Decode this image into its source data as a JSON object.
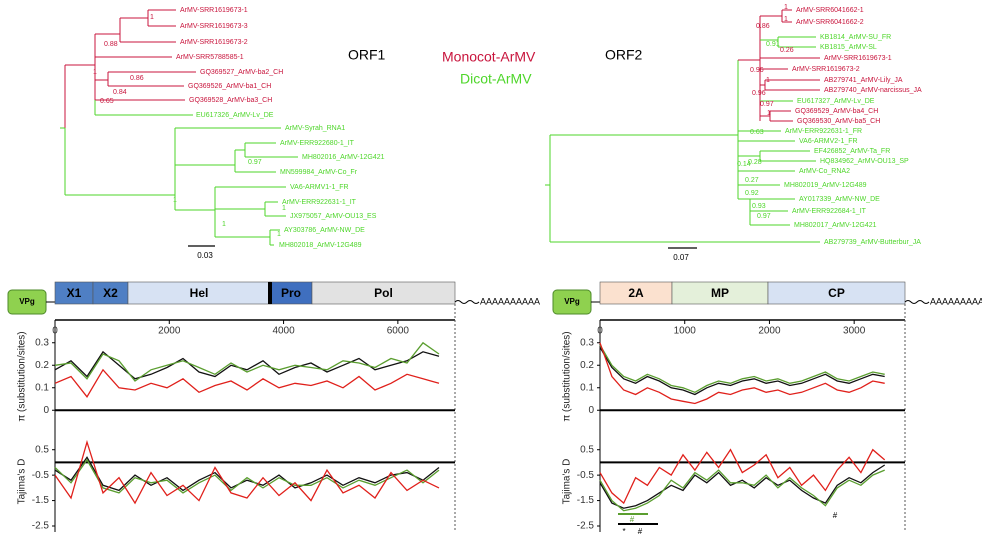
{
  "trees": [
    {
      "title": "ORF1",
      "scale": "0.03",
      "leaves": [
        {
          "label": "ArMV-SRR1619673-1",
          "color": "#c8143c"
        },
        {
          "label": "ArMV-SRR1619673-3",
          "color": "#c8143c"
        },
        {
          "label": "ArMV-SRR1619673-2",
          "color": "#c8143c"
        },
        {
          "label": "ArMV-SRR5788585-1",
          "color": "#c8143c"
        },
        {
          "label": "GQ369527_ArMV-ba2_CH",
          "color": "#c8143c"
        },
        {
          "label": "GQ369526_ArMV-ba1_CH",
          "color": "#c8143c"
        },
        {
          "label": "GQ369528_ArMV-ba3_CH",
          "color": "#c8143c"
        },
        {
          "label": "EU617326_ArMV-Lv_DE",
          "color": "#4ed62a"
        },
        {
          "label": "ArMV-Syrah_RNA1",
          "color": "#4ed62a"
        },
        {
          "label": "ArMV-ERR922680-1_IT",
          "color": "#4ed62a"
        },
        {
          "label": "MH802016_ArMV-12G421",
          "color": "#4ed62a"
        },
        {
          "label": "MN599984_ArMV-Co_Fr",
          "color": "#4ed62a"
        },
        {
          "label": "VA6-ARMV1-1_FR",
          "color": "#4ed62a"
        },
        {
          "label": "ArMV-ERR922631-1_IT",
          "color": "#4ed62a"
        },
        {
          "label": "JX975057_ArMV-OU13_ES",
          "color": "#4ed62a"
        },
        {
          "label": "AY303786_ArMV-NW_DE",
          "color": "#4ed62a"
        },
        {
          "label": "MH802018_ArMV-12G489",
          "color": "#4ed62a"
        }
      ],
      "support": [
        "1",
        "0.88",
        "1",
        "0.86",
        "0.84",
        "0.65",
        "0.97",
        "1",
        "1",
        "1",
        "1"
      ]
    },
    {
      "title": "ORF2",
      "scale": "0.07",
      "leaves": [
        {
          "label": "ArMV-SRR6041662-1",
          "color": "#c8143c"
        },
        {
          "label": "ArMV-SRR6041662-2",
          "color": "#c8143c"
        },
        {
          "label": "KB1814_ArMV-SU_FR",
          "color": "#4ed62a"
        },
        {
          "label": "KB1815_ArMV-SL",
          "color": "#4ed62a"
        },
        {
          "label": "ArMV-SRR1619673-1",
          "color": "#c8143c"
        },
        {
          "label": "ArMV-SRR1619673-2",
          "color": "#c8143c"
        },
        {
          "label": "AB279741_ArMV-Lily_JA",
          "color": "#c8143c"
        },
        {
          "label": "AB279740_ArMV-narcissus_JA",
          "color": "#c8143c"
        },
        {
          "label": "EU617327_ArMV-Lv_DE",
          "color": "#4ed62a"
        },
        {
          "label": "GQ369529_ArMV-ba4_CH",
          "color": "#c8143c"
        },
        {
          "label": "GQ369530_ArMV-ba5_CH",
          "color": "#c8143c"
        },
        {
          "label": "ArMV-ERR922631-1_FR",
          "color": "#4ed62a"
        },
        {
          "label": "VA6-ARMV2-1_FR",
          "color": "#4ed62a"
        },
        {
          "label": "EF426852_ArMV-Ta_FR",
          "color": "#4ed62a"
        },
        {
          "label": "HQ834962_ArMV-OU13_SP",
          "color": "#4ed62a"
        },
        {
          "label": "ArMV-Co_RNA2",
          "color": "#4ed62a"
        },
        {
          "label": "MH802019_ArMV-12G489",
          "color": "#4ed62a"
        },
        {
          "label": "AY017339_ArMV-NW_DE",
          "color": "#4ed62a"
        },
        {
          "label": "ArMV-ERR922684-1_IT",
          "color": "#4ed62a"
        },
        {
          "label": "MH802017_ArMV-12G421",
          "color": "#4ed62a"
        },
        {
          "label": "AB279739_ArMV-Butterbur_JA",
          "color": "#4ed62a"
        }
      ],
      "support": [
        "1",
        "1",
        "0.86",
        "0.91",
        "0.26",
        "0.96",
        "1",
        "0.96",
        "0.97",
        "1",
        "0.63",
        "0.14",
        "0.28",
        "0.27",
        "0.92",
        "0.93",
        "0.97"
      ]
    }
  ],
  "legend": [
    {
      "label": "Monocot-ArMV",
      "color": "#c8143c"
    },
    {
      "label": "Dicot-ArMV",
      "color": "#4ed62a"
    }
  ],
  "genome_maps": [
    {
      "vpg": "VPg",
      "tail": "AAAAAAAAAA",
      "segments": [
        {
          "label": "X1",
          "color": "#4f7fc4"
        },
        {
          "label": "X2",
          "color": "#4f7fc4"
        },
        {
          "label": "Hel",
          "color": "#d7e2f3"
        },
        {
          "label": "Pro",
          "color": "#3f6fbf"
        },
        {
          "label": "Pol",
          "color": "#e2e2e2"
        }
      ]
    },
    {
      "vpg": "VPg",
      "tail": "AAAAAAAAAA",
      "segments": [
        {
          "label": "2A",
          "color": "#fbe1cf"
        },
        {
          "label": "MP",
          "color": "#e4f0da"
        },
        {
          "label": "CP",
          "color": "#d7e2f3"
        }
      ]
    }
  ],
  "annotations": [
    "#",
    "*",
    "#",
    "#"
  ],
  "chart_data": [
    {
      "type": "line",
      "ylabel": "π (substitution/sites)",
      "x": [
        0,
        280,
        560,
        840,
        1120,
        1400,
        1680,
        1960,
        2240,
        2520,
        2800,
        3080,
        3360,
        3640,
        3920,
        4200,
        4480,
        4760,
        5040,
        5320,
        5600,
        5880,
        6160,
        6440,
        6720
      ],
      "xlim": [
        0,
        7000
      ],
      "xticks": [
        0,
        2000,
        4000,
        6000
      ],
      "ylim": [
        -0.03,
        0.33
      ],
      "yticks": [
        0,
        0.1,
        0.2,
        0.3
      ],
      "series": [
        {
          "color": "#111111",
          "values": [
            0.18,
            0.22,
            0.15,
            0.26,
            0.2,
            0.14,
            0.16,
            0.19,
            0.23,
            0.17,
            0.15,
            0.2,
            0.18,
            0.22,
            0.16,
            0.19,
            0.21,
            0.17,
            0.2,
            0.23,
            0.18,
            0.2,
            0.22,
            0.26,
            0.24
          ]
        },
        {
          "color": "#5a9e2f",
          "values": [
            0.2,
            0.21,
            0.14,
            0.25,
            0.22,
            0.13,
            0.18,
            0.2,
            0.22,
            0.19,
            0.16,
            0.21,
            0.17,
            0.2,
            0.18,
            0.2,
            0.19,
            0.18,
            0.22,
            0.21,
            0.19,
            0.23,
            0.21,
            0.3,
            0.25
          ]
        },
        {
          "color": "#e0201b",
          "values": [
            0.12,
            0.15,
            0.06,
            0.18,
            0.1,
            0.09,
            0.12,
            0.1,
            0.14,
            0.08,
            0.11,
            0.13,
            0.09,
            0.14,
            0.1,
            0.12,
            0.11,
            0.13,
            0.1,
            0.15,
            0.09,
            0.12,
            0.16,
            0.14,
            0.12
          ]
        }
      ]
    },
    {
      "type": "line",
      "ylabel": "Tajima's D",
      "x": [
        0,
        280,
        560,
        840,
        1120,
        1400,
        1680,
        1960,
        2240,
        2520,
        2800,
        3080,
        3360,
        3640,
        3920,
        4200,
        4480,
        4760,
        5040,
        5320,
        5600,
        5880,
        6160,
        6440,
        6720
      ],
      "xlim": [
        0,
        7000
      ],
      "ylim": [
        -2.5,
        1
      ],
      "yticks": [
        0.5,
        -0.5,
        -1.5,
        -2.5
      ],
      "series": [
        {
          "color": "#111111",
          "values": [
            -0.3,
            -0.7,
            0.2,
            -0.9,
            -1.1,
            -0.5,
            -0.9,
            -0.6,
            -1.1,
            -0.7,
            -0.4,
            -1,
            -0.7,
            -0.9,
            -0.5,
            -1,
            -0.8,
            -0.5,
            -0.9,
            -0.6,
            -0.8,
            -0.5,
            -0.4,
            -0.7,
            -0.2
          ]
        },
        {
          "color": "#5a9e2f",
          "values": [
            -0.2,
            -0.8,
            0.1,
            -1,
            -1.2,
            -0.6,
            -0.8,
            -0.7,
            -1.2,
            -0.8,
            -0.5,
            -1.1,
            -0.6,
            -1,
            -0.6,
            -0.9,
            -0.9,
            -0.6,
            -1,
            -0.7,
            -0.9,
            -0.6,
            -0.3,
            -0.8,
            -0.3
          ]
        },
        {
          "color": "#e0201b",
          "values": [
            -0.5,
            -1.4,
            0.8,
            -1.2,
            -0.6,
            -1.6,
            -0.4,
            -1.3,
            -0.9,
            -1.5,
            -0.2,
            -1.2,
            -1.4,
            -0.6,
            -1.3,
            -0.8,
            -1.5,
            -0.3,
            -1.2,
            -0.9,
            -1.4,
            -0.4,
            -1.1,
            -0.7,
            -1
          ]
        }
      ]
    },
    {
      "type": "line",
      "ylabel": "π (substitution/sites)",
      "x": [
        0,
        140,
        280,
        420,
        560,
        700,
        840,
        980,
        1120,
        1260,
        1400,
        1540,
        1680,
        1820,
        1960,
        2100,
        2240,
        2380,
        2520,
        2660,
        2800,
        2940,
        3080,
        3220,
        3360
      ],
      "xlim": [
        0,
        3600
      ],
      "xticks": [
        0,
        1000,
        2000,
        3000
      ],
      "ylim": [
        -0.03,
        0.33
      ],
      "yticks": [
        0,
        0.1,
        0.2,
        0.3
      ],
      "series": [
        {
          "color": "#111111",
          "values": [
            0.28,
            0.19,
            0.14,
            0.12,
            0.15,
            0.13,
            0.1,
            0.09,
            0.07,
            0.1,
            0.12,
            0.11,
            0.13,
            0.14,
            0.12,
            0.13,
            0.11,
            0.12,
            0.14,
            0.16,
            0.13,
            0.12,
            0.14,
            0.16,
            0.15
          ]
        },
        {
          "color": "#5a9e2f",
          "values": [
            0.29,
            0.2,
            0.15,
            0.13,
            0.16,
            0.14,
            0.11,
            0.1,
            0.08,
            0.11,
            0.13,
            0.12,
            0.14,
            0.15,
            0.13,
            0.14,
            0.12,
            0.13,
            0.15,
            0.17,
            0.14,
            0.13,
            0.15,
            0.17,
            0.16
          ]
        },
        {
          "color": "#e0201b",
          "values": [
            0.3,
            0.15,
            0.09,
            0.07,
            0.1,
            0.08,
            0.05,
            0.04,
            0.03,
            0.05,
            0.08,
            0.07,
            0.09,
            0.1,
            0.08,
            0.09,
            0.07,
            0.08,
            0.1,
            0.12,
            0.09,
            0.08,
            0.1,
            0.13,
            0.12
          ]
        }
      ]
    },
    {
      "type": "line",
      "ylabel": "Tajima's D",
      "x": [
        0,
        140,
        280,
        420,
        560,
        700,
        840,
        980,
        1120,
        1260,
        1400,
        1540,
        1680,
        1820,
        1960,
        2100,
        2240,
        2380,
        2520,
        2660,
        2800,
        2940,
        3080,
        3220,
        3360
      ],
      "xlim": [
        0,
        3600
      ],
      "ylim": [
        -2.5,
        1
      ],
      "yticks": [
        0.5,
        -0.5,
        -1.5,
        -2.5
      ],
      "series": [
        {
          "color": "#111111",
          "values": [
            -0.8,
            -1.6,
            -1.8,
            -1.7,
            -1.5,
            -1.2,
            -0.9,
            -1.1,
            -0.5,
            -0.8,
            -0.4,
            -0.9,
            -0.7,
            -1,
            -0.6,
            -0.9,
            -0.7,
            -1.1,
            -1.4,
            -1.6,
            -0.9,
            -0.6,
            -0.8,
            -0.4,
            -0.1
          ]
        },
        {
          "color": "#5a9e2f",
          "values": [
            -0.7,
            -1.5,
            -1.9,
            -1.8,
            -1.6,
            -1.3,
            -0.7,
            -1,
            -0.4,
            -0.7,
            -0.3,
            -0.8,
            -0.8,
            -0.9,
            -0.5,
            -1,
            -0.6,
            -1,
            -1.3,
            -1.7,
            -1,
            -0.7,
            -0.9,
            -0.5,
            -0.3
          ]
        },
        {
          "color": "#e0201b",
          "values": [
            -0.4,
            -1.2,
            -1.6,
            -0.6,
            -0.9,
            -0.2,
            -0.5,
            0.3,
            -0.3,
            0.4,
            -0.2,
            0.5,
            -0.4,
            -0.1,
            0.3,
            -0.6,
            -0.2,
            -0.9,
            -0.5,
            -1.1,
            -0.3,
            0.2,
            -0.4,
            0.5,
            0.1
          ]
        }
      ]
    }
  ]
}
